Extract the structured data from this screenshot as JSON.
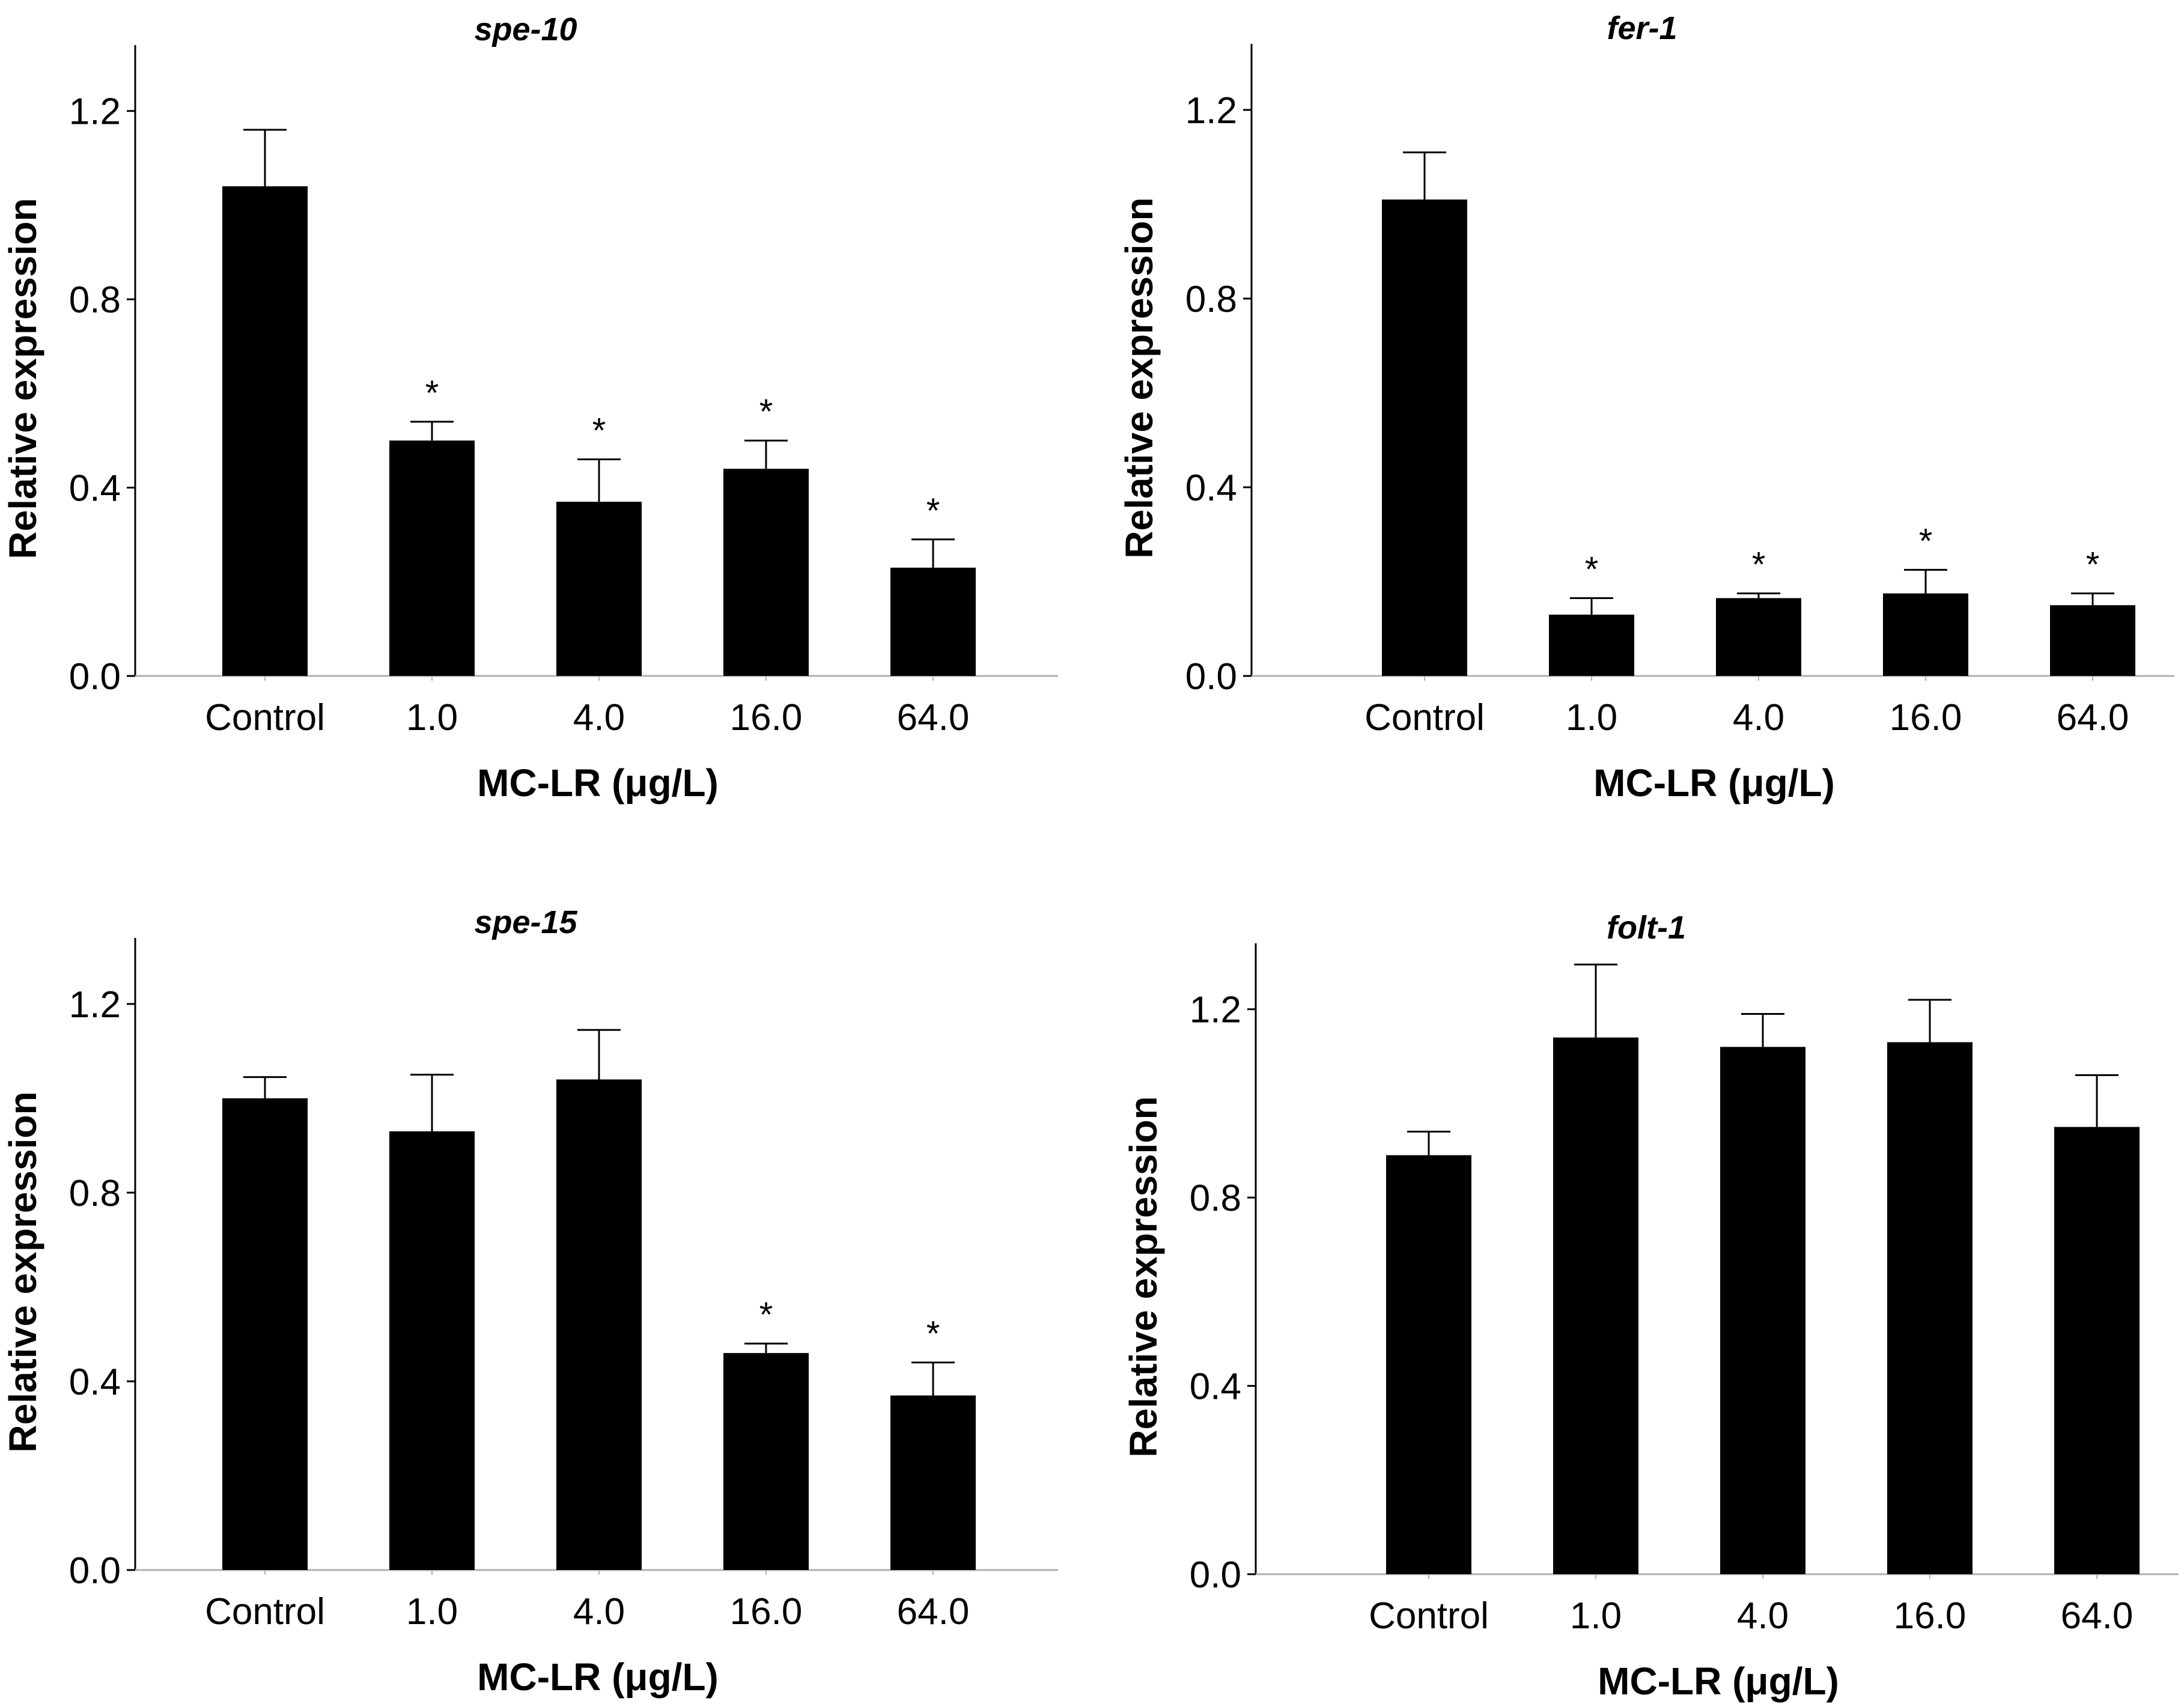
{
  "chart_data": [
    {
      "type": "bar",
      "title": "spe-10",
      "categories": [
        "Control",
        "1.0",
        "4.0",
        "16.0",
        "64.0"
      ],
      "values": [
        1.04,
        0.5,
        0.37,
        0.44,
        0.23
      ],
      "errors": [
        0.12,
        0.04,
        0.09,
        0.06,
        0.06
      ],
      "significant": [
        false,
        true,
        true,
        true,
        true
      ],
      "xlabel": "MC-LR (μg/L)",
      "ylabel": "Relative  expression",
      "ylim": [
        0,
        1.34
      ],
      "yticks": [
        "0.0",
        "0.4",
        "0.8",
        "1.2"
      ],
      "marker": "*"
    },
    {
      "type": "bar",
      "title": "fer-1",
      "categories": [
        "Control",
        "1.0",
        "4.0",
        "16.0",
        "64.0"
      ],
      "values": [
        1.01,
        0.13,
        0.165,
        0.175,
        0.15
      ],
      "errors": [
        0.1,
        0.035,
        0.01,
        0.05,
        0.025
      ],
      "significant": [
        false,
        true,
        true,
        true,
        true
      ],
      "xlabel": "MC-LR (μg/L)",
      "ylabel": "Relative  expression",
      "ylim": [
        0,
        1.34
      ],
      "yticks": [
        "0.0",
        "0.4",
        "0.8",
        "1.2"
      ],
      "marker": "*"
    },
    {
      "type": "bar",
      "title": "spe-15",
      "categories": [
        "Control",
        "1.0",
        "4.0",
        "16.0",
        "64.0"
      ],
      "values": [
        1.0,
        0.93,
        1.04,
        0.46,
        0.37
      ],
      "errors": [
        0.045,
        0.12,
        0.105,
        0.02,
        0.07
      ],
      "significant": [
        false,
        false,
        false,
        true,
        true
      ],
      "xlabel": "MC-LR (μg/L)",
      "ylabel": "Relative  expression",
      "ylim": [
        0,
        1.34
      ],
      "yticks": [
        "0.0",
        "0.4",
        "0.8",
        "1.2"
      ],
      "marker": "*"
    },
    {
      "type": "bar",
      "title": "folt-1",
      "categories": [
        "Control",
        "1.0",
        "4.0",
        "16.0",
        "64.0"
      ],
      "values": [
        0.89,
        1.14,
        1.12,
        1.13,
        0.95
      ],
      "errors": [
        0.05,
        0.155,
        0.07,
        0.09,
        0.11
      ],
      "significant": [
        false,
        false,
        false,
        false,
        false
      ],
      "xlabel": "MC-LR (μg/L)",
      "ylabel": "Relative  expression",
      "ylim": [
        0,
        1.34
      ],
      "yticks": [
        "0.0",
        "0.4",
        "0.8",
        "1.2"
      ],
      "marker": "*"
    }
  ]
}
